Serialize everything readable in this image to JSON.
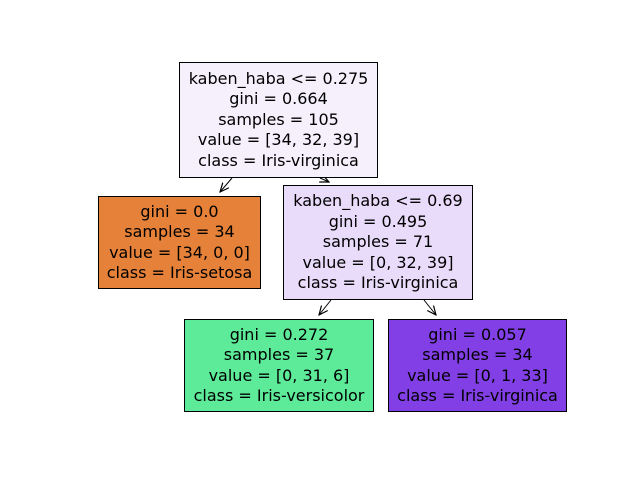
{
  "tree": {
    "nodes": [
      {
        "id": "node-0",
        "condition": "kaben_haba <= 0.275",
        "gini": "gini = 0.664",
        "samples": "samples = 105",
        "value": "value = [34, 32, 39]",
        "class_label": "class = Iris-virginica",
        "fill": "#f6f0fd"
      },
      {
        "id": "node-1",
        "gini": "gini = 0.0",
        "samples": "samples = 34",
        "value": "value = [34, 0, 0]",
        "class_label": "class = Iris-setosa",
        "fill": "#e58139"
      },
      {
        "id": "node-2",
        "condition": "kaben_haba <= 0.69",
        "gini": "gini = 0.495",
        "samples": "samples = 71",
        "value": "value = [0, 32, 39]",
        "class_label": "class = Iris-virginica",
        "fill": "#e9dbfa"
      },
      {
        "id": "node-3",
        "gini": "gini = 0.272",
        "samples": "samples = 37",
        "value": "value = [0, 31, 6]",
        "class_label": "class = Iris-versicolor",
        "fill": "#5deb99"
      },
      {
        "id": "node-4",
        "gini": "gini = 0.057",
        "samples": "samples = 34",
        "value": "value = [0, 1, 33]",
        "class_label": "class = Iris-virginica",
        "fill": "#823fe6"
      }
    ],
    "edges": [
      {
        "from": "node-0",
        "to": "node-1"
      },
      {
        "from": "node-0",
        "to": "node-2"
      },
      {
        "from": "node-2",
        "to": "node-3"
      },
      {
        "from": "node-2",
        "to": "node-4"
      }
    ]
  }
}
